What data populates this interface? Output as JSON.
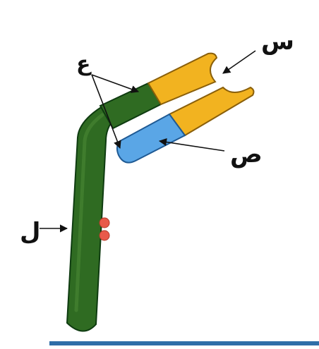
{
  "diagram": {
    "labels": {
      "sin": "س",
      "sad": "ص",
      "ain": "ع",
      "lam": "ل"
    },
    "colors": {
      "page_background": "#ffffff",
      "dark_green": "#2f6b22",
      "green_highlight": "#4c8a36",
      "green_outline": "#0e3b10",
      "yellow": "#f2b320",
      "yellow_outline": "#8a5f0a",
      "blue": "#5aa6e6",
      "blue_outline": "#1f5a94",
      "red_dot": "#e85a4a",
      "blue_rule": "#2f6ea8",
      "arrow": "#111111"
    }
  }
}
